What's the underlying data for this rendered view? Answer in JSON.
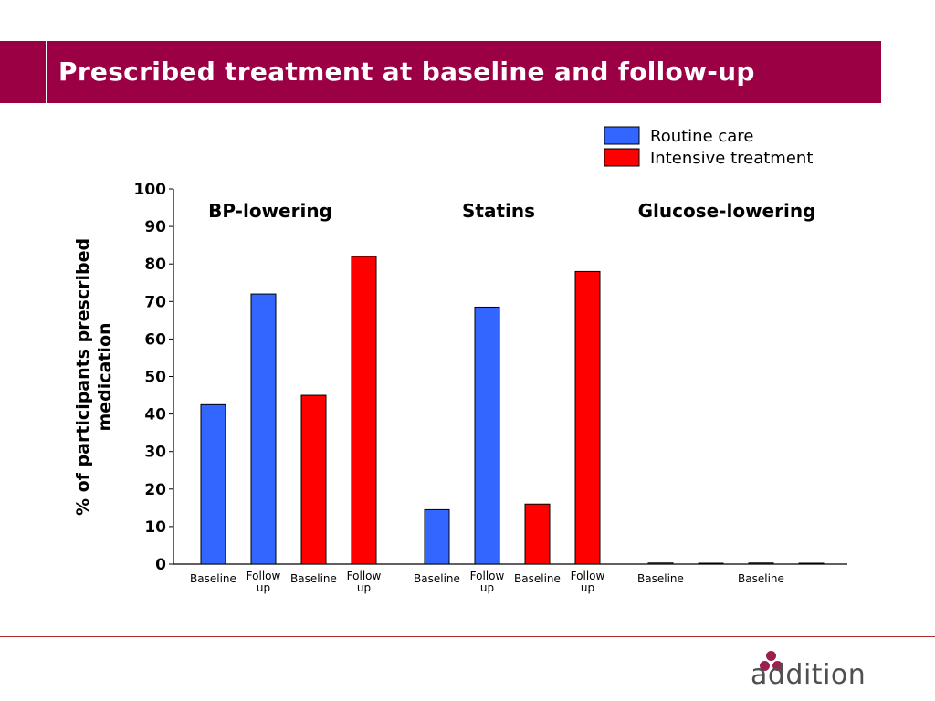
{
  "title": "Prescribed treatment at baseline and follow-up",
  "logo_text": "addition",
  "colors": {
    "routine_care": "#3366ff",
    "intensive_treatment": "#ff0000",
    "title_bar": "#9b0044",
    "logo_dots": "#9b2050"
  },
  "chart_data": {
    "type": "bar",
    "ylabel": "% of participants prescribed medication",
    "ylim": [
      0,
      100
    ],
    "yticks": [
      0,
      10,
      20,
      30,
      40,
      50,
      60,
      70,
      80,
      90,
      100
    ],
    "legend": {
      "placement": "top-right",
      "entries": [
        {
          "name": "Routine care",
          "color": "#3366ff"
        },
        {
          "name": "Intensive treatment",
          "color": "#ff0000"
        }
      ]
    },
    "groups": [
      {
        "label": "BP-lowering",
        "bars": [
          {
            "series": "Routine care",
            "label": "Baseline",
            "value": 42.5
          },
          {
            "series": "Routine care",
            "label": "Follow up",
            "value": 72
          },
          {
            "series": "Intensive treatment",
            "label": "Baseline",
            "value": 45
          },
          {
            "series": "Intensive treatment",
            "label": "Follow up",
            "value": 82
          }
        ]
      },
      {
        "label": "Statins",
        "bars": [
          {
            "series": "Routine care",
            "label": "Baseline",
            "value": 14.5
          },
          {
            "series": "Routine care",
            "label": "Follow up",
            "value": 68.5
          },
          {
            "series": "Intensive treatment",
            "label": "Baseline",
            "value": 16
          },
          {
            "series": "Intensive treatment",
            "label": "Follow up",
            "value": 78
          }
        ]
      },
      {
        "label": "Glucose-lowering",
        "bars": [
          {
            "series": "Routine care",
            "label": "Baseline",
            "value": 0.3
          },
          {
            "series": "Routine care",
            "label": "",
            "value": 0.1
          },
          {
            "series": "Intensive treatment",
            "label": "Baseline",
            "value": 0.3
          },
          {
            "series": "Intensive treatment",
            "label": "",
            "value": 0.1
          }
        ]
      }
    ]
  }
}
